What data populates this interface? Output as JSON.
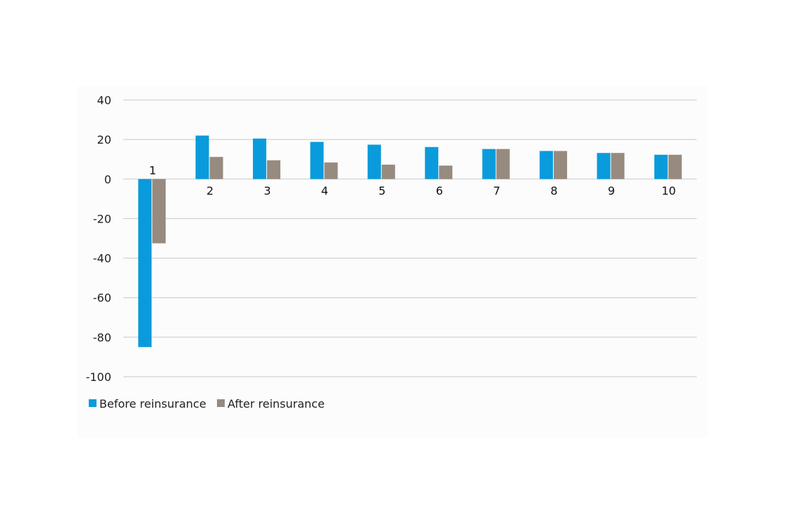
{
  "chart_data": {
    "type": "bar",
    "title": "",
    "xlabel": "",
    "ylabel": "",
    "categories": [
      "1",
      "2",
      "3",
      "4",
      "5",
      "6",
      "7",
      "8",
      "9",
      "10"
    ],
    "series": [
      {
        "name": "Before reinsurance",
        "color": "#0a9bdc",
        "values": [
          -85,
          22,
          20.5,
          18.8,
          17.4,
          16.2,
          15.2,
          14.2,
          13.2,
          12.3
        ]
      },
      {
        "name": "After reinsurance",
        "color": "#978b80",
        "values": [
          -32.5,
          11.2,
          9.5,
          8.4,
          7.3,
          6.8,
          15.2,
          14.2,
          13.2,
          12.3
        ]
      }
    ],
    "ylim": [
      -100,
      40
    ],
    "yticks": [
      40,
      20,
      0,
      -20,
      -40,
      -60,
      -80,
      -100
    ],
    "grid": true,
    "legend_position": "bottom-left"
  }
}
